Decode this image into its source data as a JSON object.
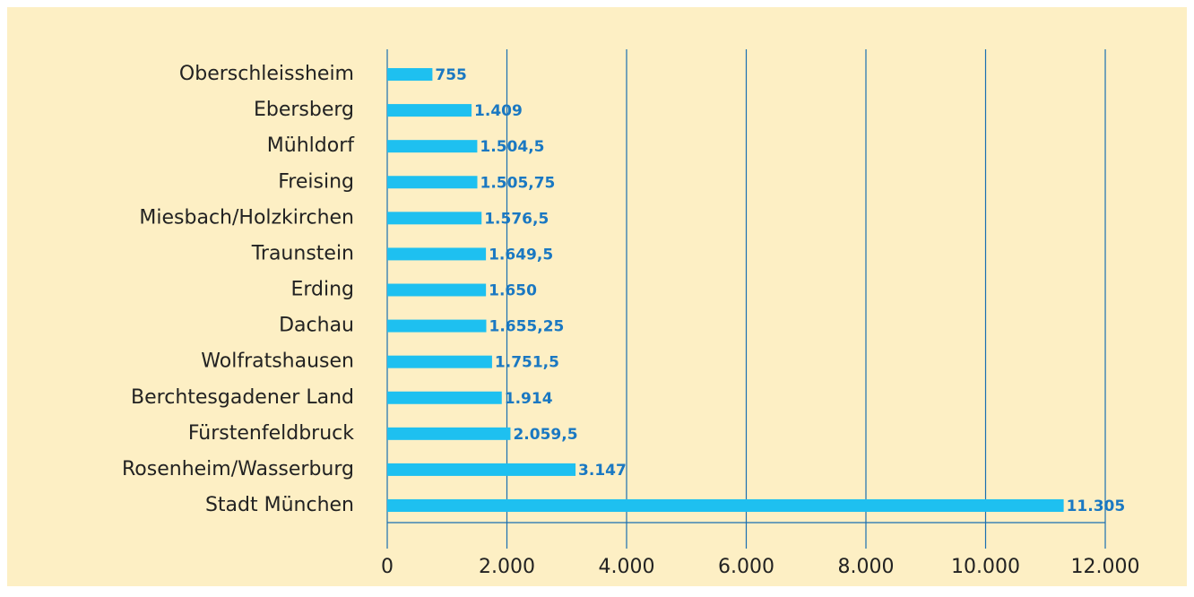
{
  "chart_data": {
    "type": "bar",
    "orientation": "horizontal",
    "categories": [
      "Oberschleissheim",
      "Ebersberg",
      "Mühldorf",
      "Freising",
      "Miesbach/Holzkirchen",
      "Traunstein",
      "Erding",
      "Dachau",
      "Wolfratshausen",
      "Berchtesgadener Land",
      "Fürstenfeldbruck",
      "Rosenheim/Wasserburg",
      "Stadt München"
    ],
    "values": [
      755,
      1409,
      1504.5,
      1505.75,
      1576.5,
      1649.5,
      1650,
      1655.25,
      1751.5,
      1914,
      2059.5,
      3147,
      11305
    ],
    "value_labels": [
      "755",
      "1.409",
      "1.504,5",
      "1.505,75",
      "1.576,5",
      "1.649,5",
      "1.650",
      "1.655,25",
      "1.751,5",
      "1.914",
      "2.059,5",
      "3.147",
      "11.305"
    ],
    "color": "#1ec0f0",
    "xlim": [
      0,
      12000
    ],
    "xticks": [
      0,
      {
        "value": 2000,
        "label": "2.000"
      },
      {
        "value": 4000,
        "label": "4.000"
      },
      {
        "value": 6000,
        "label": "6.000"
      },
      {
        "value": 8000,
        "label": "8.000"
      },
      {
        "value": 10000,
        "label": "10.000"
      },
      {
        "value": 12000,
        "label": "12.000"
      }
    ],
    "grid": true
  }
}
